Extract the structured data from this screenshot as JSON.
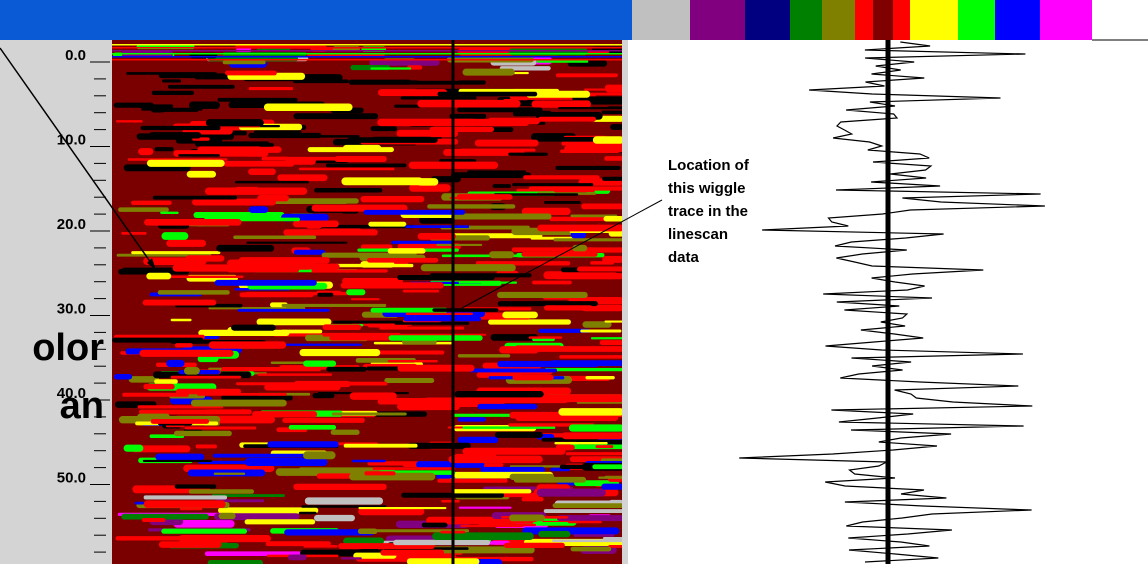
{
  "depth_axis": {
    "labels": [
      "0.0",
      "10.0",
      "20.0",
      "30.0",
      "40.0",
      "50.0"
    ]
  },
  "annotation": {
    "lines": [
      "Location of",
      "this wiggle",
      "trace in the",
      "linescan",
      "data"
    ]
  },
  "side_caption": {
    "lines": [
      "olor",
      "an"
    ]
  }
}
